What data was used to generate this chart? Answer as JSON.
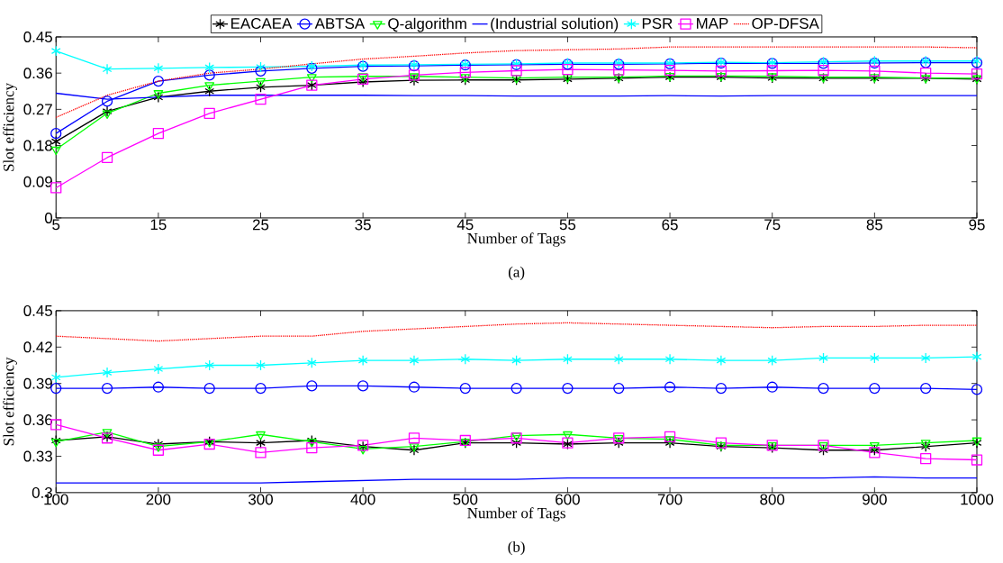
{
  "chart_data": [
    {
      "type": "line",
      "xlabel": "Number of Tags",
      "ylabel": "Slot efficiency",
      "annotations": [
        "(a)"
      ],
      "x": [
        5,
        10,
        15,
        20,
        25,
        30,
        35,
        40,
        45,
        50,
        55,
        60,
        65,
        70,
        75,
        80,
        85,
        90,
        95
      ],
      "xlim": [
        5,
        95
      ],
      "xticks": [
        5,
        15,
        25,
        35,
        45,
        55,
        65,
        75,
        85,
        95
      ],
      "ylim": [
        0,
        0.45
      ],
      "yticks": [
        0,
        0.09,
        0.18,
        0.27,
        0.36,
        0.45
      ],
      "legend": "top",
      "series": [
        {
          "name": "EACAEA",
          "color": "#000000",
          "marker": "cross",
          "values": [
            0.19,
            0.265,
            0.3,
            0.315,
            0.325,
            0.33,
            0.338,
            0.342,
            0.343,
            0.343,
            0.345,
            0.347,
            0.35,
            0.35,
            0.348,
            0.347,
            0.347,
            0.347,
            0.345
          ]
        },
        {
          "name": "ABTSA",
          "color": "#0000ff",
          "marker": "circle",
          "values": [
            0.21,
            0.29,
            0.34,
            0.355,
            0.365,
            0.372,
            0.377,
            0.378,
            0.38,
            0.381,
            0.382,
            0.382,
            0.383,
            0.385,
            0.384,
            0.384,
            0.385,
            0.386,
            0.386
          ]
        },
        {
          "name": "Q-algorithm",
          "color": "#00ff00",
          "marker": "triangle",
          "values": [
            0.17,
            0.26,
            0.31,
            0.33,
            0.34,
            0.35,
            0.352,
            0.352,
            0.35,
            0.348,
            0.35,
            0.35,
            0.353,
            0.353,
            0.352,
            0.35,
            0.35,
            0.348,
            0.347
          ]
        },
        {
          "name": "(Industrial solution)",
          "color": "#0000ff",
          "marker": "none",
          "values": [
            0.31,
            0.295,
            0.3,
            0.305,
            0.305,
            0.305,
            0.305,
            0.304,
            0.304,
            0.303,
            0.303,
            0.303,
            0.304,
            0.303,
            0.304,
            0.304,
            0.304,
            0.304,
            0.304
          ]
        },
        {
          "name": "PSR",
          "color": "#00ffff",
          "marker": "cross",
          "values": [
            0.415,
            0.37,
            0.372,
            0.374,
            0.375,
            0.377,
            0.38,
            0.381,
            0.382,
            0.383,
            0.385,
            0.385,
            0.385,
            0.387,
            0.386,
            0.388,
            0.39,
            0.39,
            0.39
          ]
        },
        {
          "name": "MAP",
          "color": "#ff00ff",
          "marker": "square",
          "values": [
            0.075,
            0.15,
            0.21,
            0.26,
            0.295,
            0.33,
            0.345,
            0.355,
            0.362,
            0.366,
            0.369,
            0.368,
            0.367,
            0.365,
            0.366,
            0.367,
            0.365,
            0.36,
            0.358
          ]
        },
        {
          "name": "OP-DFSA",
          "color": "#ff0000",
          "marker": "none",
          "line_style": "dotted",
          "values": [
            0.25,
            0.305,
            0.34,
            0.36,
            0.37,
            0.383,
            0.395,
            0.402,
            0.41,
            0.416,
            0.418,
            0.42,
            0.425,
            0.425,
            0.425,
            0.425,
            0.425,
            0.425,
            0.423
          ]
        }
      ]
    },
    {
      "type": "line",
      "xlabel": "Number of Tags",
      "ylabel": "Slot efficiency",
      "annotations": [
        "(b)"
      ],
      "x": [
        100,
        150,
        200,
        250,
        300,
        350,
        400,
        450,
        500,
        550,
        600,
        650,
        700,
        750,
        800,
        850,
        900,
        950,
        1000
      ],
      "xlim": [
        100,
        1000
      ],
      "xticks": [
        100,
        200,
        300,
        400,
        500,
        600,
        700,
        800,
        900,
        1000
      ],
      "ylim": [
        0.3,
        0.45
      ],
      "yticks": [
        0.3,
        0.33,
        0.36,
        0.39,
        0.42,
        0.45
      ],
      "series": [
        {
          "color": "#000000",
          "marker": "cross",
          "values": [
            0.343,
            0.346,
            0.34,
            0.342,
            0.341,
            0.343,
            0.338,
            0.335,
            0.341,
            0.341,
            0.34,
            0.341,
            0.341,
            0.338,
            0.337,
            0.335,
            0.335,
            0.338,
            0.341
          ]
        },
        {
          "color": "#0000ff",
          "marker": "circle",
          "values": [
            0.386,
            0.386,
            0.387,
            0.386,
            0.386,
            0.388,
            0.388,
            0.387,
            0.386,
            0.386,
            0.386,
            0.386,
            0.387,
            0.386,
            0.387,
            0.386,
            0.386,
            0.386,
            0.385
          ]
        },
        {
          "color": "#00ff00",
          "marker": "triangle",
          "values": [
            0.342,
            0.35,
            0.338,
            0.342,
            0.348,
            0.342,
            0.336,
            0.338,
            0.342,
            0.347,
            0.348,
            0.345,
            0.344,
            0.339,
            0.339,
            0.339,
            0.339,
            0.341,
            0.343
          ]
        },
        {
          "color": "#0000ff",
          "marker": "none",
          "values": [
            0.308,
            0.308,
            0.308,
            0.308,
            0.308,
            0.309,
            0.31,
            0.311,
            0.311,
            0.311,
            0.312,
            0.312,
            0.312,
            0.312,
            0.312,
            0.312,
            0.313,
            0.312,
            0.312
          ]
        },
        {
          "color": "#00ffff",
          "marker": "cross",
          "values": [
            0.395,
            0.399,
            0.402,
            0.405,
            0.405,
            0.407,
            0.409,
            0.409,
            0.41,
            0.409,
            0.41,
            0.41,
            0.41,
            0.409,
            0.409,
            0.411,
            0.411,
            0.411,
            0.412
          ]
        },
        {
          "color": "#ff00ff",
          "marker": "square",
          "values": [
            0.356,
            0.345,
            0.335,
            0.34,
            0.333,
            0.337,
            0.339,
            0.345,
            0.343,
            0.345,
            0.341,
            0.345,
            0.346,
            0.341,
            0.339,
            0.339,
            0.333,
            0.328,
            0.327
          ]
        },
        {
          "color": "#ff0000",
          "marker": "none",
          "line_style": "dotted",
          "values": [
            0.429,
            0.427,
            0.425,
            0.427,
            0.429,
            0.429,
            0.433,
            0.435,
            0.437,
            0.439,
            0.44,
            0.439,
            0.438,
            0.437,
            0.436,
            0.437,
            0.437,
            0.438,
            0.438
          ]
        }
      ]
    }
  ]
}
